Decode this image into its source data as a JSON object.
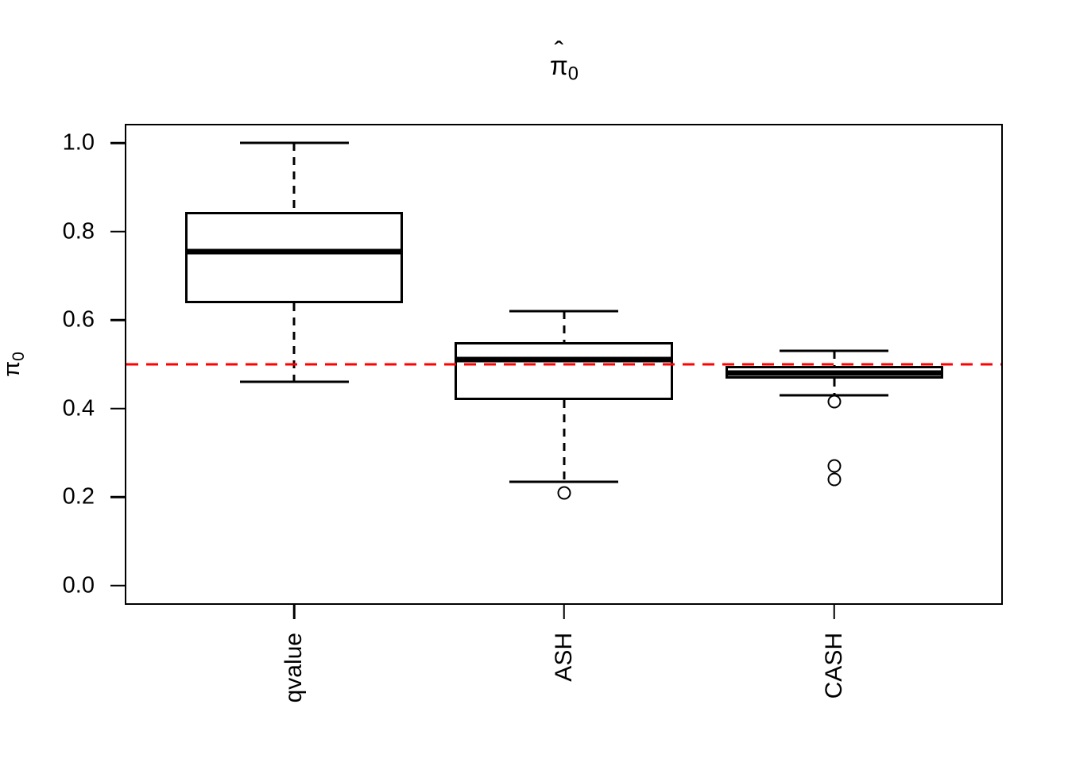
{
  "figure": {
    "title": {
      "hat": "ˆ",
      "symbol": "π",
      "subscript": "0"
    },
    "y_axis_label": {
      "hat": "ˆ",
      "symbol": "π",
      "subscript": "0"
    }
  },
  "chart_data": {
    "type": "boxplot",
    "title": "π̂₀",
    "xlabel": "",
    "ylabel": "π̂₀",
    "categories": [
      "qvalue",
      "ASH",
      "CASH"
    ],
    "series": [
      {
        "name": "qvalue",
        "whisker_low": 0.46,
        "q1": 0.638,
        "median": 0.755,
        "q3": 0.845,
        "whisker_high": 1.0,
        "outliers": []
      },
      {
        "name": "ASH",
        "whisker_low": 0.235,
        "q1": 0.42,
        "median": 0.51,
        "q3": 0.55,
        "whisker_high": 0.62,
        "outliers": [
          0.21
        ]
      },
      {
        "name": "CASH",
        "whisker_low": 0.43,
        "q1": 0.467,
        "median": 0.48,
        "q3": 0.497,
        "whisker_high": 0.53,
        "outliers": [
          0.415,
          0.27,
          0.24
        ]
      }
    ],
    "yticks": {
      "values": [
        1.0,
        0.8,
        0.6,
        0.4,
        0.2,
        0.0
      ],
      "labels": [
        "1.0",
        "0.8",
        "0.6",
        "0.4",
        "0.2",
        "0.0"
      ]
    },
    "ylim": [
      -0.04,
      1.04
    ],
    "reference_line": {
      "value": 0.5,
      "color": "#FF0000",
      "style": "dashed"
    },
    "style": {
      "stroke": "#000000",
      "median_color": "#000000",
      "background": "#FFFFFF"
    },
    "layout": {
      "x_centers_pct": [
        19.2,
        50.0,
        80.9
      ],
      "box_width_pct": 24.9,
      "cap_width_pct": 12.4,
      "grid": false,
      "legend": "none"
    }
  }
}
